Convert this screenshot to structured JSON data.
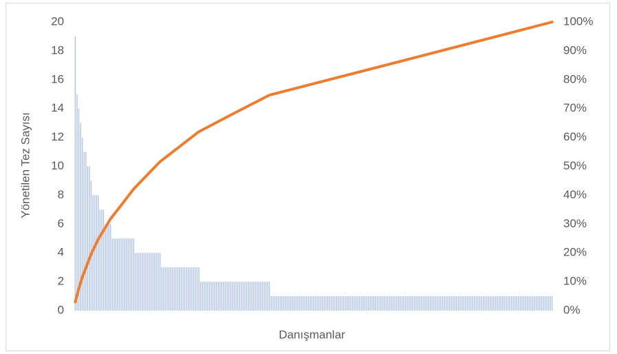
{
  "chart_data": {
    "type": "bar",
    "x_label": "Danışmanlar",
    "y_label": "Yönetilen Tez Sayısı",
    "ylim": [
      0,
      20
    ],
    "yticks": [
      0,
      2,
      4,
      6,
      8,
      10,
      12,
      14,
      16,
      18,
      20
    ],
    "y2lim": [
      0,
      100
    ],
    "y2ticks": [
      {
        "value": 0,
        "label": "0%"
      },
      {
        "value": 10,
        "label": "10%"
      },
      {
        "value": 20,
        "label": "20%"
      },
      {
        "value": 30,
        "label": "30%"
      },
      {
        "value": 40,
        "label": "40%"
      },
      {
        "value": 50,
        "label": "50%"
      },
      {
        "value": 60,
        "label": "60%"
      },
      {
        "value": 70,
        "label": "70%"
      },
      {
        "value": 80,
        "label": "80%"
      },
      {
        "value": 90,
        "label": "90%"
      },
      {
        "value": 100,
        "label": "100%"
      }
    ],
    "grid": false,
    "series": [
      {
        "type": "bar",
        "color": "#b4c7e7",
        "values": [
          19,
          15,
          14,
          13,
          12,
          11,
          11,
          10,
          10,
          9,
          8,
          8,
          8,
          8,
          7,
          7,
          7,
          6,
          6,
          6,
          6,
          5,
          5,
          5,
          5,
          5,
          5,
          5,
          5,
          5,
          5,
          5,
          5,
          5,
          4,
          4,
          4,
          4,
          4,
          4,
          4,
          4,
          4,
          4,
          4,
          4,
          4,
          4,
          4,
          3,
          3,
          3,
          3,
          3,
          3,
          3,
          3,
          3,
          3,
          3,
          3,
          3,
          3,
          3,
          3,
          3,
          3,
          3,
          3,
          3,
          3,
          2,
          2,
          2,
          2,
          2,
          2,
          2,
          2,
          2,
          2,
          2,
          2,
          2,
          2,
          2,
          2,
          2,
          2,
          2,
          2,
          2,
          2,
          2,
          2,
          2,
          2,
          2,
          2,
          2,
          2,
          2,
          2,
          2,
          2,
          2,
          2,
          2,
          2,
          2,
          2,
          1,
          1,
          1,
          1,
          1,
          1,
          1,
          1,
          1,
          1,
          1,
          1,
          1,
          1,
          1,
          1,
          1,
          1,
          1,
          1,
          1,
          1,
          1,
          1,
          1,
          1,
          1,
          1,
          1,
          1,
          1,
          1,
          1,
          1,
          1,
          1,
          1,
          1,
          1,
          1,
          1,
          1,
          1,
          1,
          1,
          1,
          1,
          1,
          1,
          1,
          1,
          1,
          1,
          1,
          1,
          1,
          1,
          1,
          1,
          1,
          1,
          1,
          1,
          1,
          1,
          1,
          1,
          1,
          1,
          1,
          1,
          1,
          1,
          1,
          1,
          1,
          1,
          1,
          1,
          1,
          1,
          1,
          1,
          1,
          1,
          1,
          1,
          1,
          1,
          1,
          1,
          1,
          1,
          1,
          1,
          1,
          1,
          1,
          1,
          1,
          1,
          1,
          1,
          1,
          1,
          1,
          1,
          1,
          1,
          1,
          1,
          1,
          1,
          1,
          1,
          1,
          1,
          1,
          1,
          1,
          1,
          1,
          1,
          1,
          1,
          1,
          1,
          1,
          1,
          1,
          1,
          1,
          1,
          1,
          1,
          1,
          1,
          1,
          1,
          1,
          1,
          1,
          1,
          1,
          1,
          1,
          1,
          1,
          1,
          1,
          1,
          1,
          1,
          1,
          1,
          1,
          1,
          1,
          1,
          1
        ]
      },
      {
        "type": "line",
        "axis": "y2",
        "color": "#ed7d31",
        "x": [
          0,
          2,
          4,
          9,
          13,
          20,
          27,
          33,
          48,
          70,
          90,
          110,
          190,
          270
        ],
        "values": [
          3.0,
          7.6,
          11.6,
          19.6,
          24.7,
          31.8,
          37.3,
          42.1,
          51.6,
          62.0,
          68.4,
          74.7,
          87.3,
          100
        ]
      }
    ]
  }
}
